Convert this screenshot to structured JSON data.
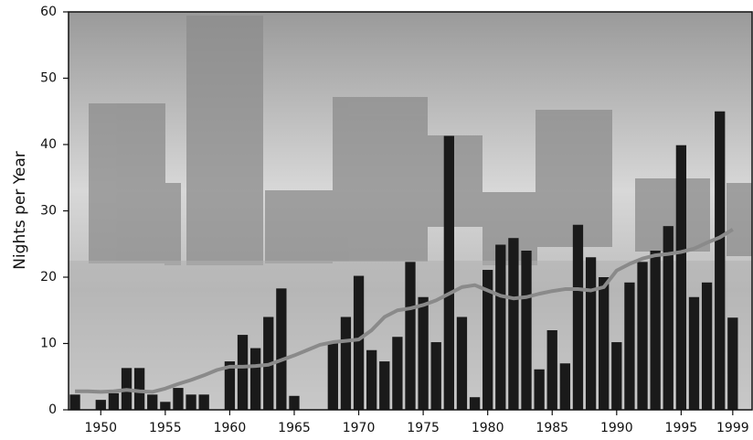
{
  "chart_data": {
    "type": "bar",
    "y_label": "Nights per Year",
    "x": [
      1948,
      1949,
      1950,
      1951,
      1952,
      1953,
      1954,
      1955,
      1956,
      1957,
      1958,
      1959,
      1960,
      1961,
      1962,
      1963,
      1964,
      1965,
      1966,
      1967,
      1968,
      1969,
      1970,
      1971,
      1972,
      1973,
      1974,
      1975,
      1976,
      1977,
      1978,
      1979,
      1980,
      1981,
      1982,
      1983,
      1984,
      1985,
      1986,
      1987,
      1988,
      1989,
      1990,
      1991,
      1992,
      1993,
      1994,
      1995,
      1996,
      1997,
      1998,
      1999
    ],
    "series": [
      {
        "kind": "bar",
        "color": "#1a1a1a",
        "values": [
          2.3,
          0,
          1.5,
          2.5,
          6.3,
          6.3,
          2.3,
          1.2,
          3.3,
          2.3,
          2.3,
          0,
          7.3,
          11.3,
          9.3,
          14,
          18.3,
          2.1,
          0,
          0,
          10,
          14,
          20.2,
          9,
          7.3,
          11,
          22.3,
          17,
          10.2,
          41.3,
          14,
          1.9,
          21.1,
          24.9,
          25.9,
          24,
          6.1,
          12,
          7,
          27.9,
          23,
          20,
          10.2,
          19.2,
          22.3,
          24,
          27.7,
          39.9,
          17,
          19.2,
          45,
          13.9
        ]
      },
      {
        "kind": "line",
        "color": "#8a8a8a",
        "values": [
          2.8,
          2.8,
          2.7,
          2.8,
          3,
          2.8,
          2.7,
          3.2,
          3.9,
          4.5,
          5.2,
          6,
          6.5,
          6.5,
          6.6,
          6.8,
          7.5,
          8.2,
          9,
          9.8,
          10.2,
          10.4,
          10.6,
          12,
          14,
          15,
          15.3,
          15.8,
          16.5,
          17.5,
          18.5,
          18.8,
          18,
          17.2,
          16.8,
          17,
          17.5,
          17.9,
          18.2,
          18.2,
          18,
          18.5,
          21,
          22,
          22.8,
          23.3,
          23.5,
          23.8,
          24.3,
          25.2,
          26,
          27.2
        ]
      }
    ],
    "xlim": [
      1947.5,
      2000.5
    ],
    "xticks": [
      1950,
      1955,
      1960,
      1965,
      1970,
      1975,
      1980,
      1985,
      1990,
      1995,
      1999
    ],
    "ylim": [
      0,
      60
    ],
    "yticks": [
      0,
      10,
      20,
      30,
      40,
      50,
      60
    ]
  }
}
